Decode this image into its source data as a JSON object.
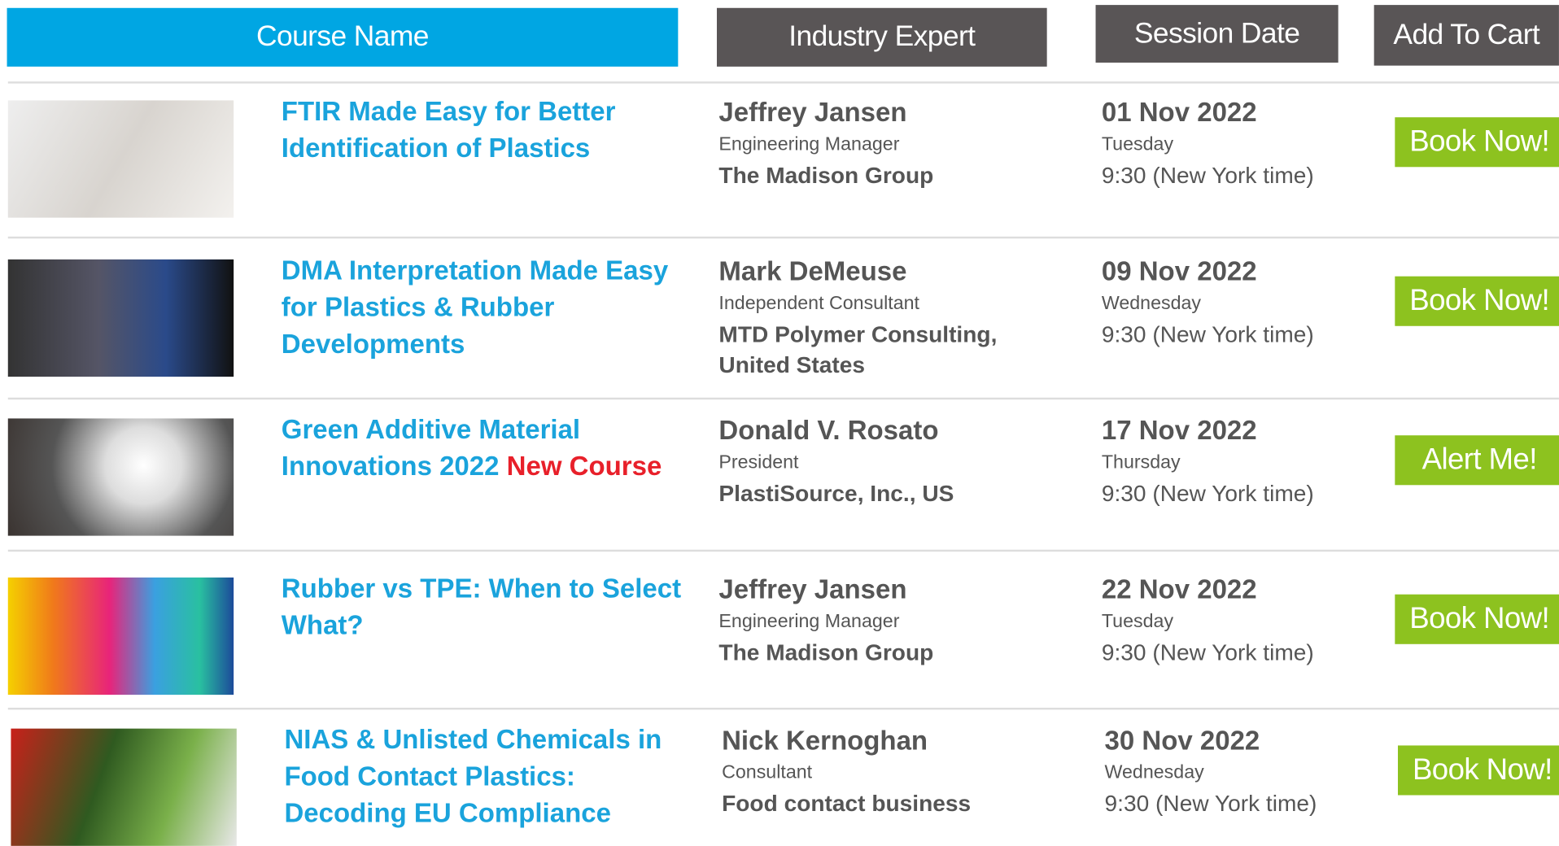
{
  "header": {
    "course": "Course Name",
    "expert": "Industry Expert",
    "date": "Session Date",
    "cart": "Add To Cart"
  },
  "rows": [
    {
      "title": "FTIR Made Easy for Better Identification of Plastics",
      "expert": "Jeffrey Jansen",
      "role": "Engineering  Manager",
      "company": "The Madison Group",
      "date": "01 Nov 2022",
      "weekday": "Tuesday",
      "time": "9:30 (New York time)",
      "button": "Book Now!"
    },
    {
      "title": "DMA Interpretation Made Easy for Plastics & Rubber Developments",
      "expert": "Mark DeMeuse",
      "role": "Independent Consultant",
      "company": "MTD Polymer Consulting, United States",
      "date": "09 Nov 2022",
      "weekday": "Wednesday",
      "time": "9:30 (New York time)",
      "button": "Book Now!"
    },
    {
      "title": "Green Additive Material Innovations 2022",
      "tag": "New Course",
      "expert": "Donald V. Rosato",
      "role": "President",
      "company": "PlastiSource, Inc., US",
      "date": "17 Nov 2022",
      "weekday": "Thursday",
      "time": "9:30 (New York time)",
      "button": "Alert Me!"
    },
    {
      "title": "Rubber vs TPE: When to Select What?",
      "expert": "Jeffrey Jansen",
      "role": "Engineering Manager",
      "company": "The Madison Group",
      "date": "22 Nov 2022",
      "weekday": "Tuesday",
      "time": "9:30 (New York time)",
      "button": "Book Now!"
    },
    {
      "title": "NIAS & Unlisted Chemicals in Food Contact Plastics: Decoding EU Compliance",
      "expert": "Nick Kernoghan",
      "role": "Consultant",
      "company": "Food contact business",
      "date": "30 Nov 2022",
      "weekday": "Wednesday",
      "time": "9:30 (New York time)",
      "button": "Book Now!"
    }
  ]
}
